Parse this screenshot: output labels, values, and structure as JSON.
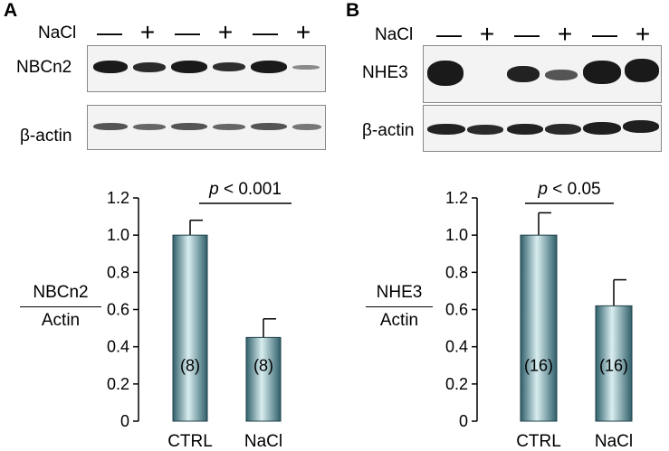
{
  "panel_a": {
    "letter": "A",
    "treatment_label": "NaCl",
    "lane_signs": [
      "—",
      "+",
      "—",
      "+",
      "—",
      "+"
    ],
    "blot_top_label": "NBCn2",
    "blot_bottom_label": "β-actin",
    "ratio_numerator": "NBCn2",
    "ratio_denominator": "Actin"
  },
  "panel_b": {
    "letter": "B",
    "treatment_label": "NaCl",
    "lane_signs": [
      "—",
      "+",
      "—",
      "+",
      "—",
      "+"
    ],
    "blot_top_label": "NHE3",
    "blot_bottom_label": "β-actin",
    "ratio_numerator": "NHE3",
    "ratio_denominator": "Actin"
  },
  "colors": {
    "bar_dark": "#2f5f6a",
    "bar_light": "#d9eef0",
    "blot_band": "#1a1a1a"
  },
  "chart_data": [
    {
      "type": "bar",
      "categories": [
        "CTRL",
        "NaCl"
      ],
      "values": [
        1.0,
        0.45
      ],
      "errors": [
        0.08,
        0.1
      ],
      "n_labels": [
        "(8)",
        "(8)"
      ],
      "ylim": [
        0,
        1.2
      ],
      "yticks": [
        "0",
        "0.2",
        "0.4",
        "0.6",
        "0.8",
        "1.0",
        "1.2"
      ],
      "significance": "p < 0.001"
    },
    {
      "type": "bar",
      "categories": [
        "CTRL",
        "NaCl"
      ],
      "values": [
        1.0,
        0.62
      ],
      "errors": [
        0.12,
        0.14
      ],
      "n_labels": [
        "(16)",
        "(16)"
      ],
      "ylim": [
        0,
        1.2
      ],
      "yticks": [
        "0",
        "0.2",
        "0.4",
        "0.6",
        "0.8",
        "1.0",
        "1.2"
      ],
      "significance": "p < 0.05"
    }
  ]
}
